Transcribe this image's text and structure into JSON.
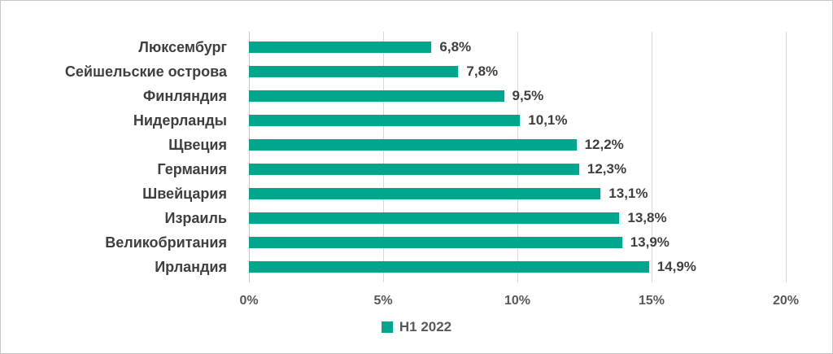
{
  "chart_data": {
    "type": "bar",
    "orientation": "horizontal",
    "title": "",
    "categories": [
      "Люксембург",
      "Сейшельские острова",
      "Финляндия",
      "Нидерланды",
      "Щвеция",
      "Германия",
      "Швейцария",
      "Израиль",
      "Великобритания",
      "Ирландия"
    ],
    "values": [
      6.8,
      7.8,
      9.5,
      10.1,
      12.2,
      12.3,
      13.1,
      13.8,
      13.9,
      14.9
    ],
    "value_labels": [
      "6,8%",
      "7,8%",
      "9,5%",
      "10,1%",
      "12,2%",
      "12,3%",
      "13,1%",
      "13,8%",
      "13,9%",
      "14,9%"
    ],
    "xlabel": "",
    "ylabel": "",
    "xlim": [
      0,
      20
    ],
    "x_ticks": [
      "0%",
      "5%",
      "10%",
      "15%",
      "20%"
    ],
    "grid": true,
    "legend_position": "bottom",
    "legend": {
      "label": "H1 2022"
    },
    "colors": {
      "bar": "#00a78c",
      "gridline": "#d9d9d9",
      "axis_line": "#c9c9c9",
      "category_text": "#3f3f3f",
      "value_text": "#3f3f3f",
      "tick_text": "#595959",
      "legend_text": "#595959",
      "background": "#ffffff",
      "border": "#c6c6c6"
    }
  }
}
